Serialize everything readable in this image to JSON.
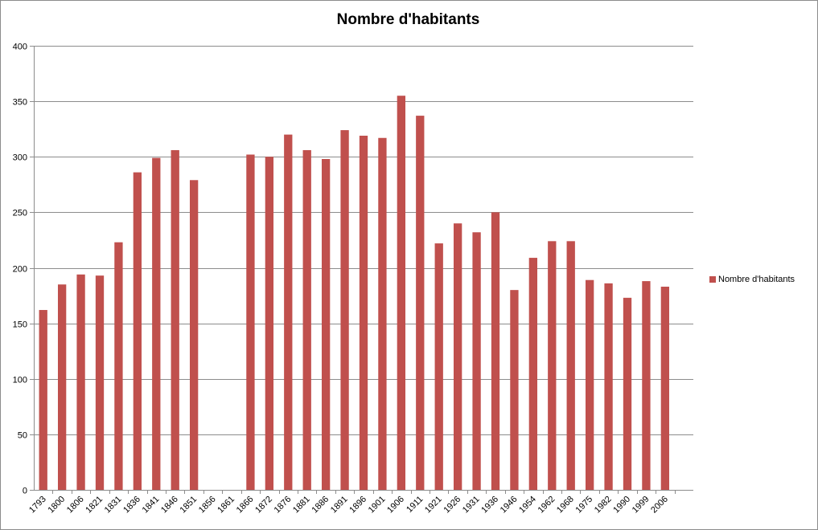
{
  "chart_data": {
    "type": "bar",
    "title": "Nombre d'habitants",
    "xlabel": "",
    "ylabel": "",
    "ylim": [
      0,
      400
    ],
    "yticks": [
      0,
      50,
      100,
      150,
      200,
      250,
      300,
      350,
      400
    ],
    "grid": true,
    "legend_position": "right",
    "categories": [
      "1793",
      "1800",
      "1806",
      "1821",
      "1831",
      "1836",
      "1841",
      "1846",
      "1851",
      "1856",
      "1861",
      "1866",
      "1872",
      "1876",
      "1881",
      "1886",
      "1891",
      "1896",
      "1901",
      "1906",
      "1911",
      "1921",
      "1926",
      "1931",
      "1936",
      "1946",
      "1954",
      "1962",
      "1968",
      "1975",
      "1982",
      "1990",
      "1999",
      "2006"
    ],
    "series": [
      {
        "name": "Nombre d'habitants",
        "color": "#c0504d",
        "values": [
          162,
          185,
          194,
          193,
          223,
          286,
          299,
          306,
          279,
          null,
          null,
          302,
          300,
          320,
          306,
          298,
          324,
          319,
          317,
          355,
          337,
          222,
          240,
          232,
          250,
          180,
          209,
          224,
          224,
          189,
          186,
          173,
          188,
          183
        ]
      }
    ]
  }
}
